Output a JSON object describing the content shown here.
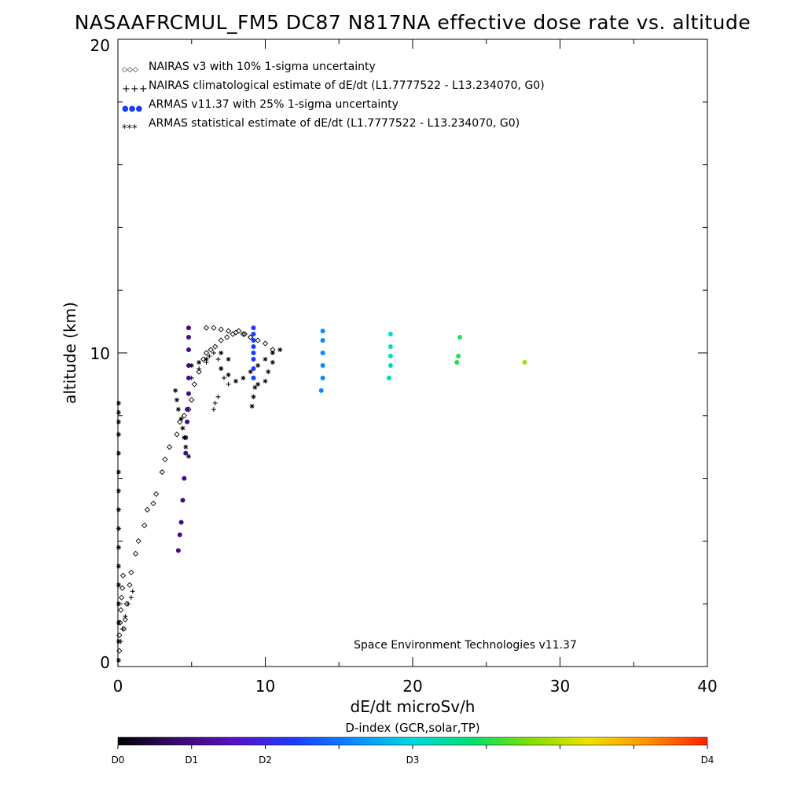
{
  "chart_data": {
    "type": "scatter",
    "title": "NASAAFRCMUL_FM5 DC87 N817NA effective dose rate vs. altitude",
    "xlabel": "dE/dt microSv/h",
    "ylabel": "altitude (km)",
    "xlim": [
      0,
      40
    ],
    "ylim": [
      0,
      20
    ],
    "x_ticks": [
      "0",
      "10",
      "20",
      "30",
      "40"
    ],
    "y_ticks": [
      "0",
      "10",
      "20"
    ],
    "legend_position": "top-left",
    "credit": "Space Environment Technologies v11.37",
    "legend": [
      {
        "symbol": "◇◇◇",
        "label": "NAIRAS v3 with 10% 1-sigma uncertainty"
      },
      {
        "symbol": "+++",
        "label": "NAIRAS climatological estimate of dE/dt (L1.7777522 - L13.234070, G0)"
      },
      {
        "symbol": "●●●",
        "label": "ARMAS v11.37 with 25% 1-sigma uncertainty"
      },
      {
        "symbol": "***",
        "label": "ARMAS statistical estimate of dE/dt (L1.7777522 - L13.234070, G0)"
      }
    ],
    "colorbar": {
      "title": "D-index (GCR,solar,TP)",
      "labels": [
        {
          "text": "D0",
          "value": 0
        },
        {
          "text": "D1",
          "value": 5
        },
        {
          "text": "D2",
          "value": 10
        },
        {
          "text": "D3",
          "value": 20
        },
        {
          "text": "D4",
          "value": 40
        }
      ],
      "stops": [
        "#000000",
        "#3a0a6e",
        "#5a10c8",
        "#1a3cff",
        "#0a8aff",
        "#00d8e0",
        "#00e070",
        "#80e000",
        "#f0e000",
        "#ff9000",
        "#ff2000"
      ]
    },
    "series": [
      {
        "name": "NAIRAS v3 with 10% 1-sigma uncertainty",
        "marker": "diamond",
        "color": "#000000",
        "x": [
          0.1,
          0.1,
          0.15,
          0.2,
          0.25,
          0.3,
          0.35,
          0.4,
          0.5,
          0.6,
          0.8,
          0.9,
          1.2,
          1.4,
          1.8,
          2.0,
          2.4,
          2.6,
          3.0,
          3.2,
          3.5,
          4.0,
          4.2,
          4.5,
          4.8,
          5.0,
          5.2,
          5.5,
          5.8,
          6.0,
          6.3,
          6.6,
          7.0,
          7.4,
          7.8,
          8.2,
          8.6,
          9.0,
          6.0,
          6.5,
          7.0,
          7.5,
          8.0,
          8.5,
          9.0,
          9.5,
          10.0,
          10.5
        ],
        "y": [
          0.5,
          1.0,
          1.4,
          1.8,
          2.2,
          2.5,
          2.9,
          1.2,
          1.5,
          2.0,
          2.6,
          3.0,
          3.6,
          4.0,
          4.5,
          5.0,
          5.2,
          5.5,
          6.2,
          6.6,
          7.0,
          7.4,
          7.8,
          8.0,
          8.2,
          8.5,
          9.0,
          9.4,
          9.8,
          10.0,
          10.1,
          10.2,
          10.4,
          10.5,
          10.6,
          10.7,
          10.6,
          10.5,
          10.8,
          10.8,
          10.75,
          10.7,
          10.65,
          10.6,
          10.5,
          10.4,
          10.3,
          10.1
        ]
      },
      {
        "name": "NAIRAS climatological estimate of dE/dt (L1.7777522 - L13.234070, G0)",
        "marker": "plus",
        "color": "#000000",
        "x": [
          0.2,
          0.3,
          0.5,
          0.7,
          0.9,
          1.0,
          5.0,
          5.5,
          6.0,
          6.2,
          6.5,
          6.8,
          7.0,
          7.2,
          7.5,
          6.5,
          6.6,
          6.8
        ],
        "y": [
          0.8,
          1.2,
          1.6,
          2.0,
          2.2,
          2.4,
          9.2,
          9.5,
          9.7,
          9.9,
          10.0,
          9.8,
          9.5,
          9.2,
          9.0,
          8.2,
          8.4,
          8.6
        ]
      },
      {
        "name": "ARMAS v11.37 with 25% 1-sigma uncertainty",
        "marker": "circle",
        "colored_by_d_index": true,
        "x": [
          4.1,
          4.2,
          4.3,
          4.4,
          4.5,
          4.6,
          4.6,
          4.7,
          4.7,
          4.8,
          4.8,
          4.8,
          4.8,
          4.8,
          4.8,
          9.2,
          9.2,
          9.2,
          9.2,
          9.2,
          9.2,
          9.2,
          9.2,
          13.8,
          13.9,
          13.9,
          13.9,
          13.9,
          13.9,
          18.4,
          18.5,
          18.5,
          18.5,
          18.5,
          23.0,
          23.1,
          23.2,
          27.6
        ],
        "y": [
          3.7,
          4.2,
          4.6,
          5.3,
          6.0,
          6.8,
          7.3,
          7.8,
          8.2,
          8.7,
          9.2,
          9.6,
          10.1,
          10.5,
          10.8,
          9.2,
          9.5,
          9.8,
          10.0,
          10.2,
          10.4,
          10.6,
          10.8,
          8.8,
          9.2,
          9.6,
          10.0,
          10.4,
          10.7,
          9.2,
          9.6,
          9.9,
          10.2,
          10.6,
          9.7,
          9.9,
          10.5,
          9.7
        ],
        "values_d_index": [
          0.5,
          0.5,
          0.5,
          0.5,
          0.5,
          0.5,
          0.5,
          0.5,
          0.5,
          0.5,
          0.5,
          0.5,
          0.5,
          0.5,
          0.5,
          1.2,
          1.2,
          1.2,
          1.2,
          1.2,
          1.2,
          1.2,
          1.2,
          1.6,
          1.6,
          1.6,
          1.6,
          1.6,
          1.6,
          2.1,
          2.1,
          2.1,
          2.1,
          2.1,
          2.5,
          2.5,
          2.5,
          2.9
        ]
      },
      {
        "name": "ARMAS statistical estimate of dE/dt (L1.7777522 - L13.234070, G0)",
        "marker": "asterisk",
        "color": "#000000",
        "x": [
          0.05,
          0.05,
          0.05,
          0.05,
          0.05,
          0.05,
          0.05,
          0.05,
          0.05,
          0.05,
          0.05,
          0.05,
          0.05,
          0.05,
          0.05,
          0.05,
          3.9,
          4.0,
          4.1,
          4.3,
          4.4,
          4.5,
          4.6,
          4.8,
          5.0,
          5.5,
          6.0,
          7.0,
          7.5,
          7.0,
          7.5,
          8.0,
          8.5,
          9.0,
          9.5,
          10.0,
          10.5,
          11.0,
          9.1,
          9.2,
          9.3,
          9.5,
          10.0,
          10.2,
          10.5
        ],
        "y": [
          0.2,
          0.8,
          1.4,
          2.0,
          2.6,
          3.2,
          3.8,
          4.4,
          5.0,
          5.6,
          6.2,
          6.8,
          7.4,
          7.8,
          8.1,
          8.4,
          8.8,
          8.5,
          8.2,
          7.9,
          7.6,
          7.3,
          7.0,
          6.7,
          9.6,
          9.7,
          9.8,
          10.0,
          9.8,
          9.5,
          9.3,
          9.1,
          9.2,
          9.4,
          9.6,
          9.8,
          10.0,
          10.1,
          8.3,
          8.6,
          8.9,
          9.0,
          9.1,
          9.4,
          9.7
        ]
      }
    ]
  }
}
